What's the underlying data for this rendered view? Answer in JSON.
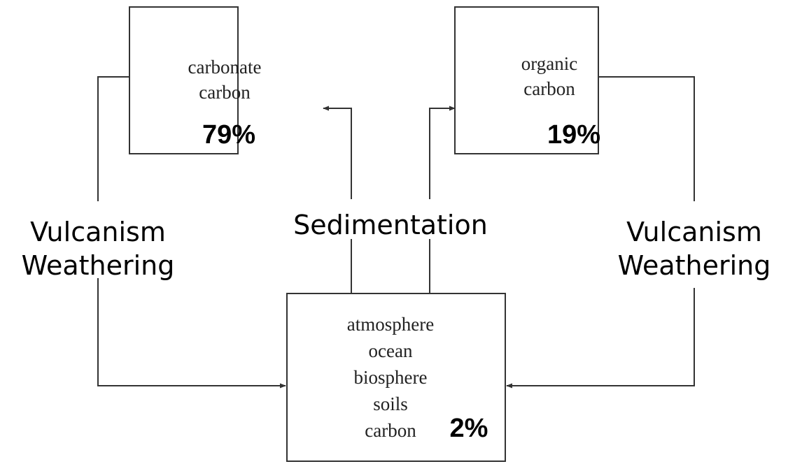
{
  "nodes": [
    {
      "lines": [
        "carbonate",
        "carbon"
      ],
      "share": "79%"
    },
    {
      "lines": [
        "organic",
        "carbon"
      ],
      "share": "19%"
    },
    {
      "lines": [
        "atmosphere",
        "ocean",
        "biosphere",
        "soils",
        "carbon"
      ],
      "share": "2%"
    }
  ],
  "processes": [
    {
      "lines": [
        "Vulcanism",
        "Weathering"
      ]
    },
    {
      "lines": [
        "Sedimentation"
      ]
    },
    {
      "lines": [
        "Vulcanism",
        "Weathering"
      ]
    }
  ]
}
